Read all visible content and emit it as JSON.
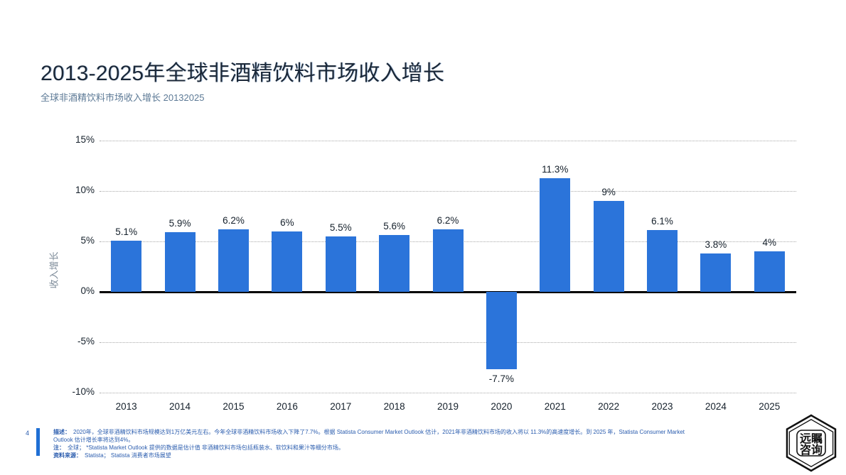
{
  "header": {
    "title": "2013-2025年全球非酒精饮料市场收入增长",
    "subtitle": "全球非酒精饮料市场收入增长 20132025"
  },
  "chart_data": {
    "type": "bar",
    "title": "2013-2025年全球非酒精饮料市场收入增长",
    "categories": [
      "2013",
      "2014",
      "2015",
      "2016",
      "2017",
      "2018",
      "2019",
      "2020",
      "2021",
      "2022",
      "2023",
      "2024",
      "2025"
    ],
    "values": [
      5.1,
      5.9,
      6.2,
      6,
      5.5,
      5.6,
      6.2,
      -7.7,
      11.3,
      9,
      6.1,
      3.8,
      4
    ],
    "value_labels": [
      "5.1%",
      "5.9%",
      "6.2%",
      "6%",
      "5.5%",
      "5.6%",
      "6.2%",
      "-7.7%",
      "11.3%",
      "9%",
      "6.1%",
      "3.8%",
      "4%"
    ],
    "xlabel": "",
    "ylabel": "收入增长",
    "ylim": [
      -10,
      15
    ],
    "yticks": [
      15,
      10,
      5,
      0,
      -5,
      -10
    ],
    "ytick_labels": [
      "15%",
      "10%",
      "5%",
      "0%",
      "-5%",
      "-10%"
    ],
    "grid": "horizontal-dotted",
    "legend": "none",
    "bar_color": "#2b74da"
  },
  "footer": {
    "page_number": "4",
    "items": [
      {
        "label": "描述：",
        "text": "2020年，全球非酒精饮料市场规模达到1万亿美元左右。今年全球非酒精饮料市场收入下降了7.7%。根据 Statista Consumer Market Outlook 估计，2021年非酒精饮料市场的收入将以 11.3%的高速度增长。到 2025 年，Statista Consumer Market Outlook 估计增长率将达到4%。"
      },
      {
        "label": "注：",
        "text": "全球；  *Statista Market Outlook 提供的数据是估计值 非酒精饮料市场包括瓶装水、软饮料和果汁等细分市场。"
      },
      {
        "label": "资料来源：",
        "text": "Statista；  Statista 消费者市场展望"
      }
    ]
  },
  "logo": {
    "text_top": "远瞩",
    "text_bottom": "咨询"
  },
  "colors": {
    "bar": "#2b74da",
    "accent_bar": "#1f6fd4",
    "footer_text": "#2a5cae",
    "title_text": "#1b2838",
    "subtitle_text": "#5d7a96",
    "axis_text": "#15202b",
    "ylabel_text": "#7d8b99"
  }
}
